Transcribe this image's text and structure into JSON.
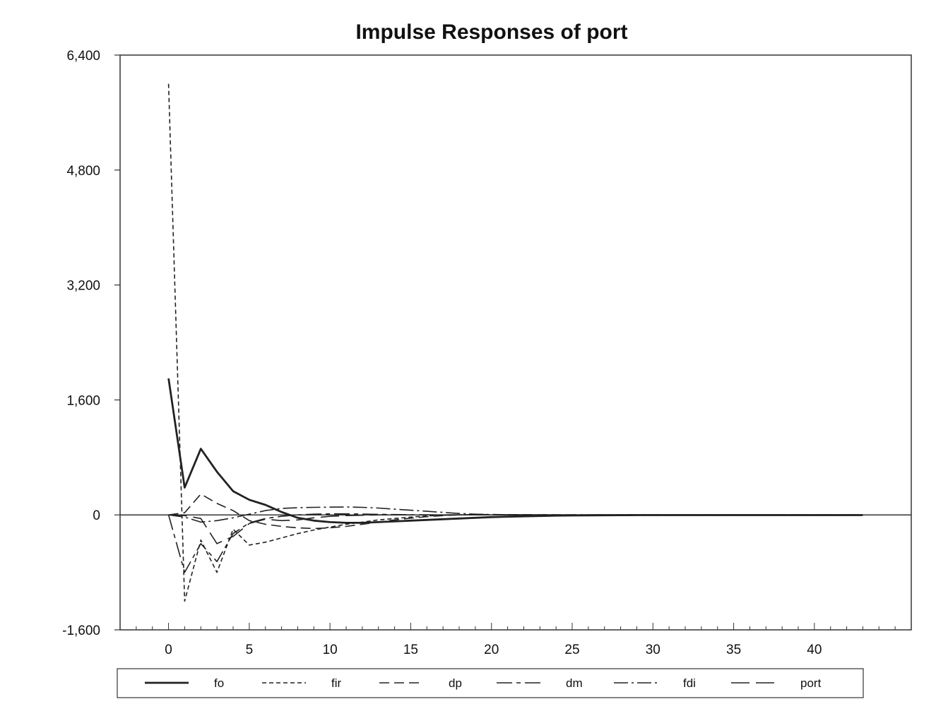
{
  "chart_data": {
    "type": "line",
    "title": "Impulse Responses of port",
    "xlabel": "",
    "ylabel": "",
    "xlim": [
      -3,
      46
    ],
    "ylim": [
      -1600,
      6400
    ],
    "xticks": [
      0,
      5,
      10,
      15,
      20,
      25,
      30,
      35,
      40
    ],
    "xtick_labels": [
      "0",
      "5",
      "10",
      "15",
      "20",
      "25",
      "30",
      "35",
      "40"
    ],
    "yticks": [
      -1600,
      0,
      1600,
      3200,
      4800,
      6400
    ],
    "ytick_labels": [
      "-1,600",
      "0",
      "1,600",
      "3,200",
      "4,800",
      "6,400"
    ],
    "zero_line": true,
    "grid": false,
    "legend_position": "bottom",
    "x": [
      0,
      1,
      2,
      3,
      4,
      5,
      6,
      7,
      8,
      9,
      10,
      11,
      12,
      13,
      14,
      15,
      16,
      17,
      18,
      19,
      20,
      21,
      22,
      23,
      24,
      25,
      26,
      27,
      28,
      29,
      30,
      31,
      32,
      33,
      34,
      35,
      36,
      37,
      38,
      39,
      40,
      41,
      42,
      43
    ],
    "series": [
      {
        "name": "fo",
        "style": "solid",
        "values": [
          1900,
          380,
          920,
          600,
          330,
          210,
          140,
          40,
          -40,
          -80,
          -100,
          -110,
          -110,
          -100,
          -90,
          -80,
          -70,
          -60,
          -50,
          -40,
          -30,
          -25,
          -20,
          -15,
          -10,
          -8,
          -6,
          -5,
          -4,
          -3,
          -3,
          -3,
          -3,
          -3,
          -3,
          -3,
          -3,
          -3,
          -3,
          -3,
          -3,
          -3,
          -3,
          -3
        ]
      },
      {
        "name": "fir",
        "style": "short-dash",
        "values": [
          6000,
          -1200,
          -350,
          -800,
          -200,
          -420,
          -380,
          -320,
          -260,
          -210,
          -170,
          -130,
          -100,
          -70,
          -50,
          -30,
          -15,
          -5,
          0,
          0,
          0,
          0,
          0,
          0,
          0,
          0,
          0,
          0,
          0,
          0,
          0,
          0,
          0,
          0,
          0,
          0,
          0,
          0,
          0,
          0,
          0,
          0,
          0,
          0
        ]
      },
      {
        "name": "dp",
        "style": "medium-dash",
        "values": [
          0,
          30,
          290,
          160,
          60,
          -80,
          -130,
          -160,
          -180,
          -190,
          -180,
          -160,
          -130,
          -100,
          -70,
          -45,
          -25,
          -10,
          0,
          5,
          5,
          4,
          3,
          2,
          1,
          0,
          0,
          0,
          0,
          0,
          0,
          0,
          0,
          0,
          0,
          0,
          0,
          0,
          0,
          0,
          0,
          0,
          0,
          0
        ]
      },
      {
        "name": "dm",
        "style": "long-dash-short",
        "values": [
          0,
          -800,
          -400,
          -650,
          -260,
          -110,
          -50,
          -20,
          0,
          10,
          15,
          15,
          12,
          8,
          5,
          2,
          0,
          0,
          0,
          0,
          0,
          0,
          0,
          0,
          0,
          0,
          0,
          0,
          0,
          0,
          0,
          0,
          0,
          0,
          0,
          0,
          0,
          0,
          0,
          0,
          0,
          0,
          0,
          0
        ]
      },
      {
        "name": "fdi",
        "style": "dash-dot",
        "values": [
          0,
          -30,
          -100,
          -80,
          -40,
          10,
          60,
          90,
          100,
          105,
          108,
          110,
          105,
          95,
          80,
          65,
          50,
          35,
          20,
          10,
          5,
          2,
          1,
          0,
          0,
          0,
          0,
          0,
          0,
          0,
          0,
          0,
          0,
          0,
          0,
          0,
          0,
          0,
          0,
          0,
          0,
          0,
          0,
          0
        ]
      },
      {
        "name": "port",
        "style": "long-dash",
        "values": [
          0,
          -10,
          -50,
          -400,
          -300,
          -120,
          -60,
          -80,
          -70,
          -40,
          -20,
          -10,
          -5,
          0,
          0,
          0,
          0,
          0,
          0,
          0,
          0,
          0,
          0,
          0,
          0,
          0,
          0,
          0,
          0,
          0,
          0,
          0,
          0,
          0,
          0,
          0,
          0,
          0,
          0,
          0,
          0,
          0,
          0,
          0
        ]
      }
    ]
  }
}
